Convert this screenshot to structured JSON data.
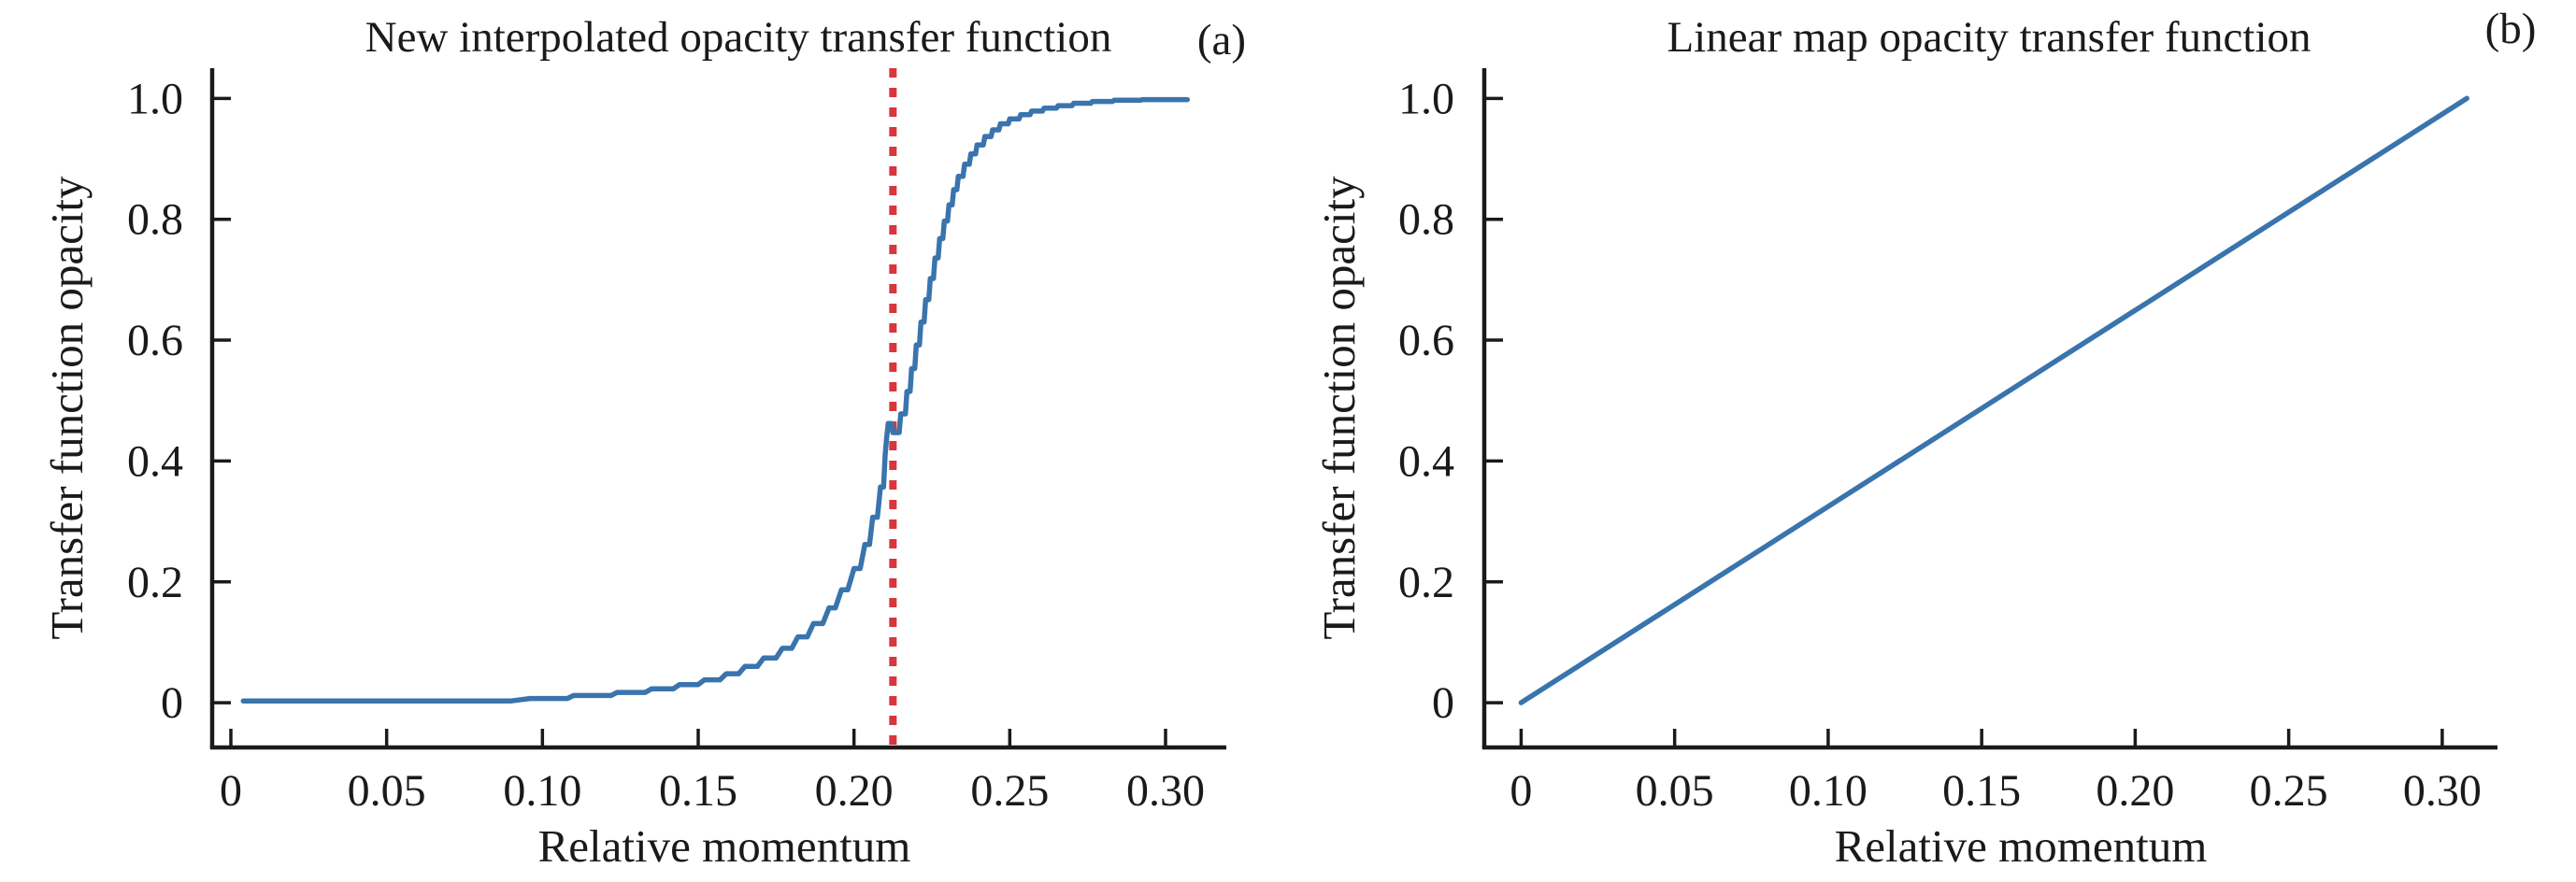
{
  "figure": {
    "background": "#ffffff",
    "ink_color": "#1a1a1a"
  },
  "chart_data": [
    {
      "type": "line",
      "panel_label": "(a)",
      "title": "New interpolated opacity transfer function",
      "xlabel": "Relative momentum",
      "ylabel": "Transfer function opacity",
      "x_ticks": {
        "values": [
          0,
          0.05,
          0.1,
          0.15,
          0.2,
          0.25,
          0.3
        ],
        "labels": [
          "0",
          "0.05",
          "0.10",
          "0.15",
          "0.20",
          "0.25",
          "0.30"
        ]
      },
      "y_ticks": {
        "values": [
          0,
          0.2,
          0.4,
          0.6,
          0.8,
          1.0
        ],
        "labels": [
          "0",
          "0.2",
          "0.4",
          "0.6",
          "0.8",
          "1.0"
        ]
      },
      "xlim": [
        0,
        0.32
      ],
      "ylim": [
        0,
        1.05
      ],
      "grid": false,
      "legend": null,
      "line_color": "#3a74ad",
      "annotations": [
        {
          "type": "vline",
          "x": 0.2125,
          "color": "#d8353c",
          "style": "dotted"
        }
      ],
      "points": [
        [
          0.004,
          0.003
        ],
        [
          0.06,
          0.003
        ],
        [
          0.09,
          0.003
        ],
        [
          0.096,
          0.007
        ],
        [
          0.108,
          0.007
        ],
        [
          0.11,
          0.012
        ],
        [
          0.122,
          0.012
        ],
        [
          0.124,
          0.017
        ],
        [
          0.133,
          0.017
        ],
        [
          0.135,
          0.023
        ],
        [
          0.142,
          0.023
        ],
        [
          0.144,
          0.03
        ],
        [
          0.15,
          0.03
        ],
        [
          0.152,
          0.038
        ],
        [
          0.157,
          0.038
        ],
        [
          0.159,
          0.048
        ],
        [
          0.163,
          0.048
        ],
        [
          0.165,
          0.06
        ],
        [
          0.169,
          0.06
        ],
        [
          0.171,
          0.074
        ],
        [
          0.175,
          0.074
        ],
        [
          0.177,
          0.09
        ],
        [
          0.18,
          0.09
        ],
        [
          0.182,
          0.109
        ],
        [
          0.185,
          0.109
        ],
        [
          0.187,
          0.131
        ],
        [
          0.19,
          0.131
        ],
        [
          0.192,
          0.157
        ],
        [
          0.194,
          0.157
        ],
        [
          0.196,
          0.187
        ],
        [
          0.198,
          0.187
        ],
        [
          0.2,
          0.222
        ],
        [
          0.202,
          0.222
        ],
        [
          0.2035,
          0.262
        ],
        [
          0.205,
          0.262
        ],
        [
          0.206,
          0.307
        ],
        [
          0.2075,
          0.307
        ],
        [
          0.2085,
          0.357
        ],
        [
          0.2095,
          0.357
        ],
        [
          0.21,
          0.41
        ],
        [
          0.2105,
          0.44
        ],
        [
          0.211,
          0.462
        ],
        [
          0.212,
          0.462
        ],
        [
          0.2125,
          0.447
        ],
        [
          0.2145,
          0.447
        ],
        [
          0.215,
          0.478
        ],
        [
          0.2165,
          0.478
        ],
        [
          0.217,
          0.515
        ],
        [
          0.218,
          0.515
        ],
        [
          0.2185,
          0.553
        ],
        [
          0.2195,
          0.553
        ],
        [
          0.22,
          0.592
        ],
        [
          0.221,
          0.592
        ],
        [
          0.2215,
          0.63
        ],
        [
          0.2225,
          0.63
        ],
        [
          0.223,
          0.667
        ],
        [
          0.224,
          0.667
        ],
        [
          0.2245,
          0.702
        ],
        [
          0.2255,
          0.702
        ],
        [
          0.226,
          0.736
        ],
        [
          0.227,
          0.736
        ],
        [
          0.2275,
          0.768
        ],
        [
          0.2285,
          0.768
        ],
        [
          0.229,
          0.797
        ],
        [
          0.23,
          0.797
        ],
        [
          0.2305,
          0.824
        ],
        [
          0.2315,
          0.824
        ],
        [
          0.232,
          0.849
        ],
        [
          0.233,
          0.849
        ],
        [
          0.2335,
          0.871
        ],
        [
          0.235,
          0.871
        ],
        [
          0.2355,
          0.891
        ],
        [
          0.237,
          0.891
        ],
        [
          0.2375,
          0.908
        ],
        [
          0.239,
          0.908
        ],
        [
          0.2395,
          0.923
        ],
        [
          0.2415,
          0.923
        ],
        [
          0.242,
          0.937
        ],
        [
          0.244,
          0.937
        ],
        [
          0.2445,
          0.948
        ],
        [
          0.2465,
          0.948
        ],
        [
          0.247,
          0.958
        ],
        [
          0.2495,
          0.958
        ],
        [
          0.25,
          0.966
        ],
        [
          0.253,
          0.966
        ],
        [
          0.2535,
          0.973
        ],
        [
          0.2565,
          0.973
        ],
        [
          0.257,
          0.979
        ],
        [
          0.2605,
          0.979
        ],
        [
          0.261,
          0.984
        ],
        [
          0.265,
          0.984
        ],
        [
          0.2655,
          0.988
        ],
        [
          0.27,
          0.988
        ],
        [
          0.2705,
          0.992
        ],
        [
          0.276,
          0.992
        ],
        [
          0.2765,
          0.995
        ],
        [
          0.283,
          0.995
        ],
        [
          0.2835,
          0.997
        ],
        [
          0.292,
          0.997
        ],
        [
          0.2925,
          0.998
        ],
        [
          0.307,
          0.998
        ]
      ]
    },
    {
      "type": "line",
      "panel_label": "(b)",
      "title": "Linear map opacity transfer function",
      "xlabel": "Relative momentum",
      "ylabel": "Transfer function opacity",
      "x_ticks": {
        "values": [
          0,
          0.05,
          0.1,
          0.15,
          0.2,
          0.25,
          0.3
        ],
        "labels": [
          "0",
          "0.05",
          "0.10",
          "0.15",
          "0.20",
          "0.25",
          "0.30"
        ]
      },
      "y_ticks": {
        "values": [
          0,
          0.2,
          0.4,
          0.6,
          0.8,
          1.0
        ],
        "labels": [
          "0",
          "0.2",
          "0.4",
          "0.6",
          "0.8",
          "1.0"
        ]
      },
      "xlim": [
        0,
        0.32
      ],
      "ylim": [
        0,
        1.05
      ],
      "grid": false,
      "legend": null,
      "line_color": "#3a74ad",
      "annotations": [],
      "points": [
        [
          0.0,
          0.0
        ],
        [
          0.308,
          1.0
        ]
      ]
    }
  ]
}
